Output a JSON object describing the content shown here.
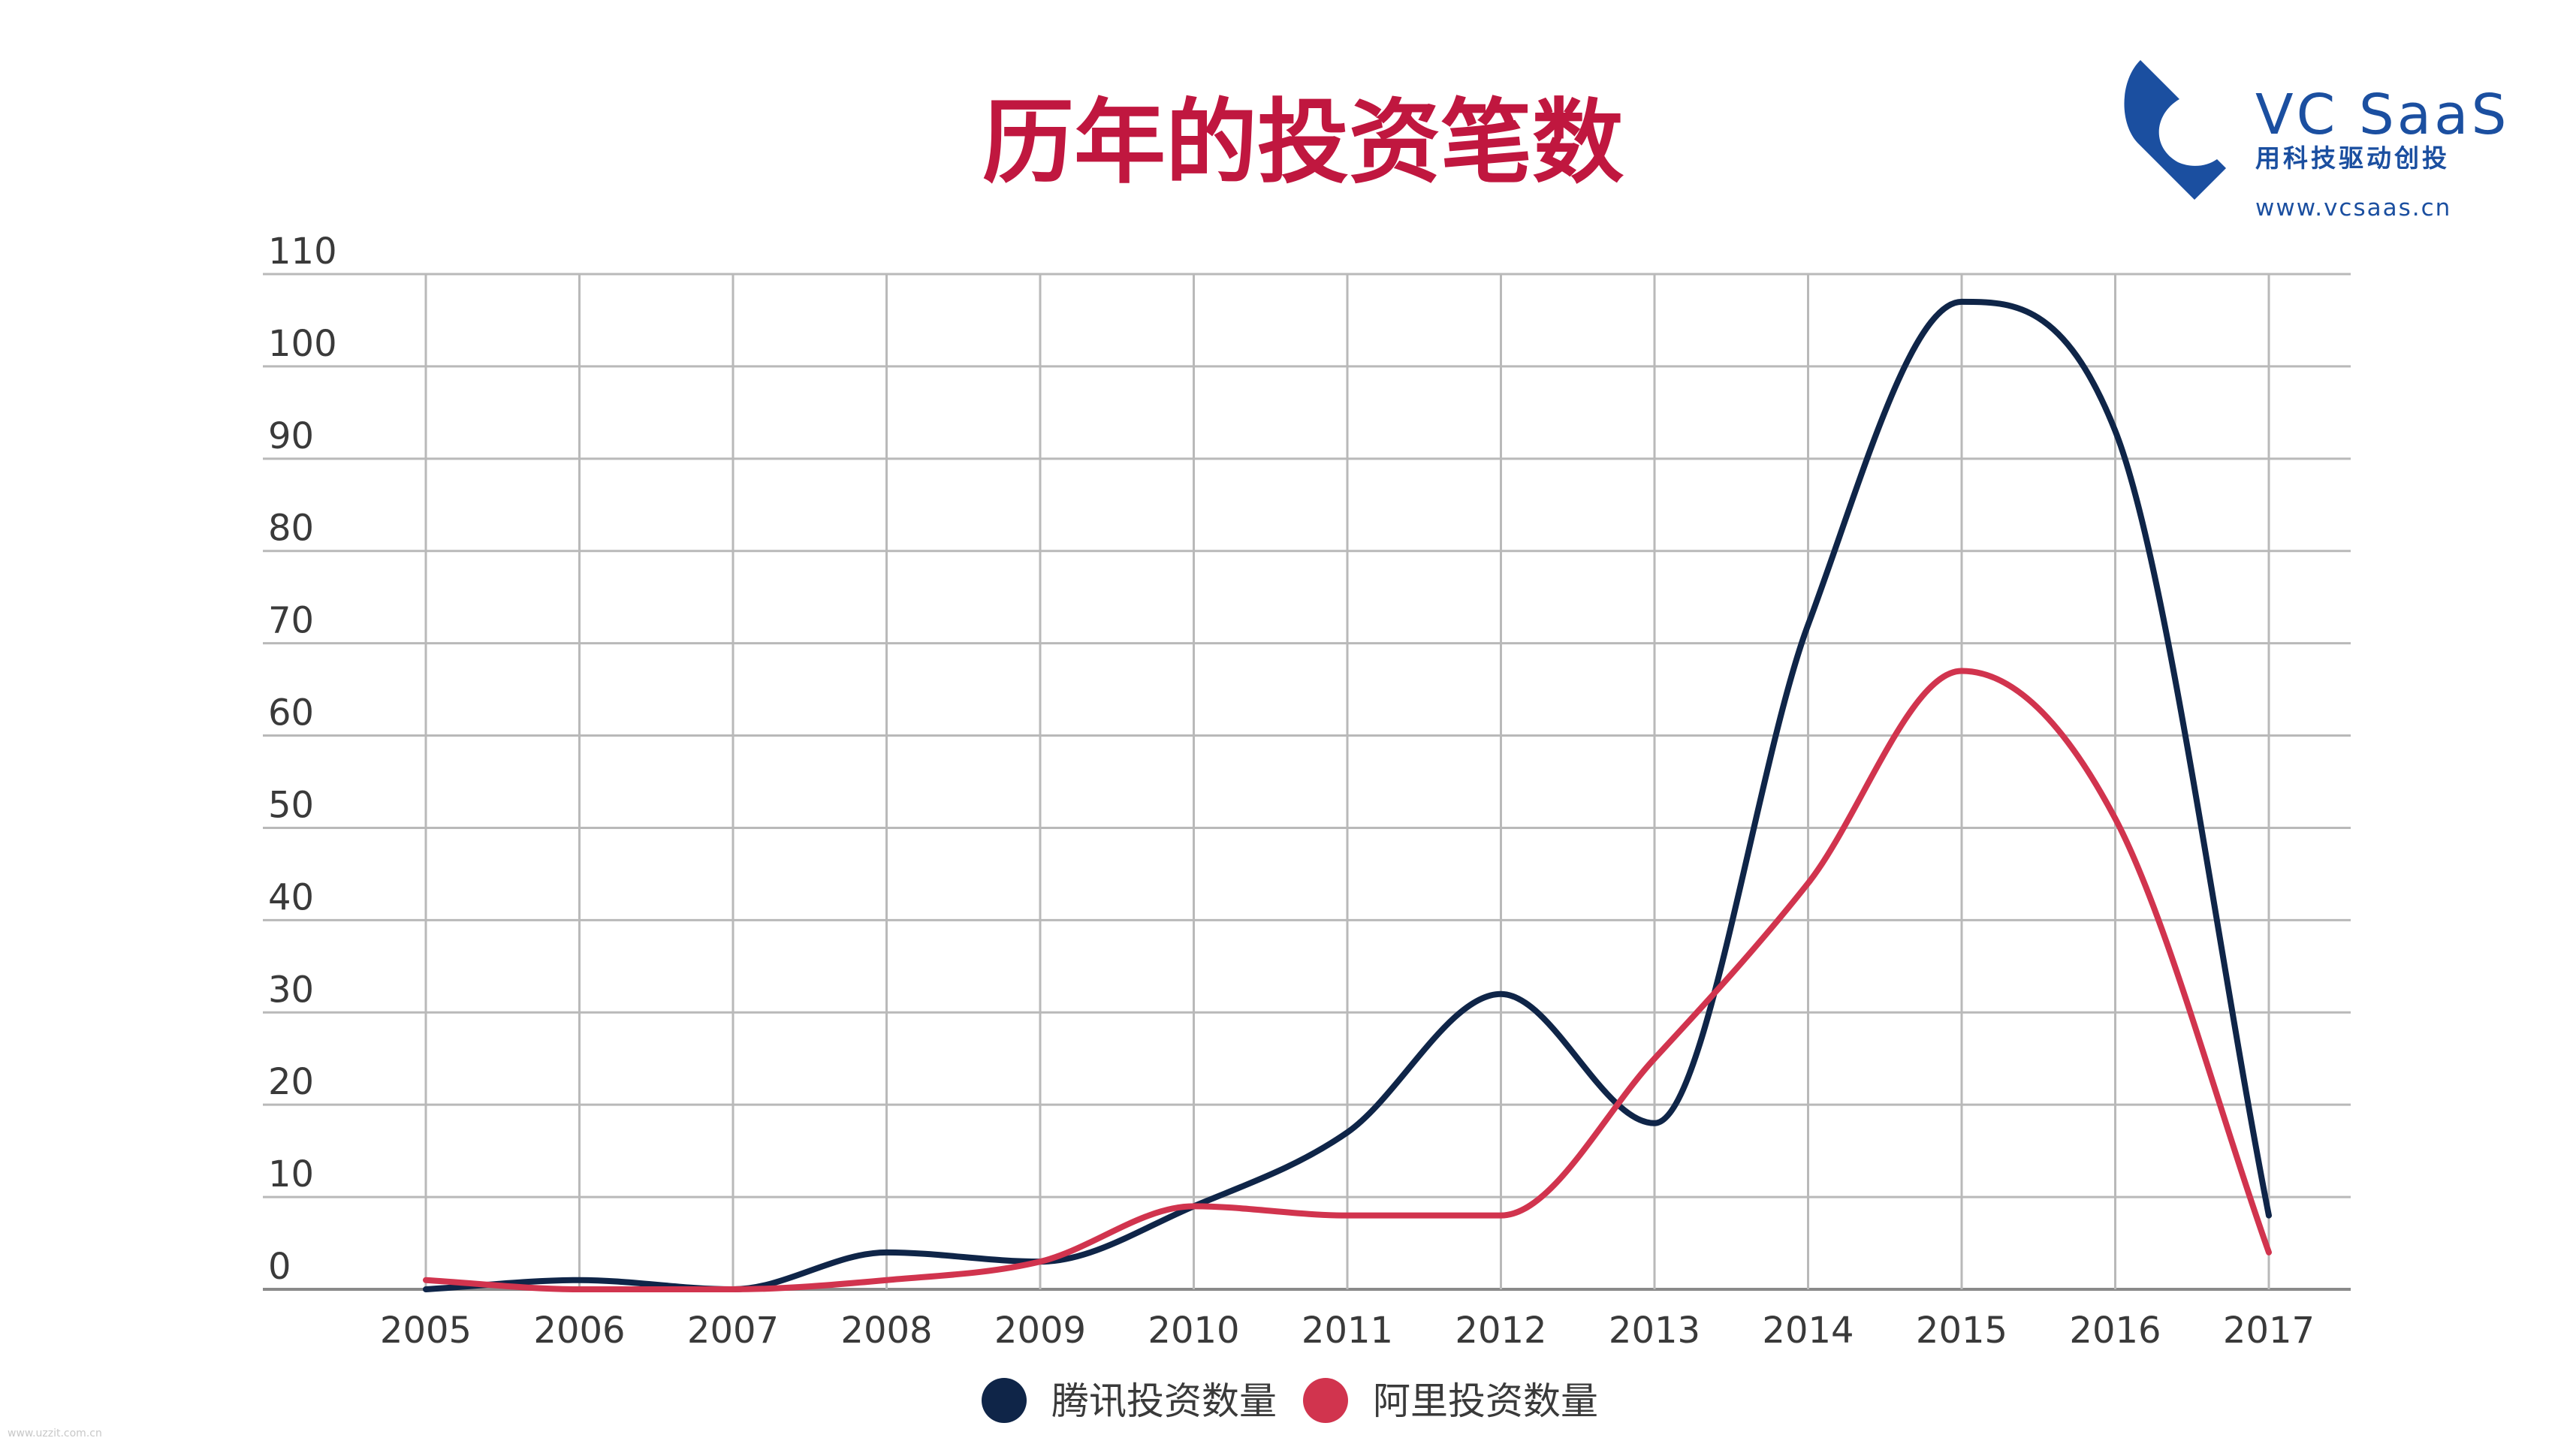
{
  "page": {
    "title": "历年的投资笔数",
    "title_color": "#c0173f"
  },
  "logo": {
    "name": "VC  SaaS",
    "slogan": "用科技驱动创投",
    "url": "www.vcsaas.cn",
    "color": "#1b4fa0"
  },
  "watermark": "www.uzzit.com.cn",
  "chart_data": {
    "type": "line",
    "title": "历年的投资笔数",
    "xlabel": "",
    "ylabel": "",
    "categories": [
      "2005",
      "2006",
      "2007",
      "2008",
      "2009",
      "2010",
      "2011",
      "2012",
      "2013",
      "2014",
      "2015",
      "2016",
      "2017"
    ],
    "ylim": [
      0,
      110
    ],
    "yticks": [
      0,
      10,
      20,
      30,
      40,
      50,
      60,
      70,
      80,
      90,
      100,
      110
    ],
    "grid": true,
    "smooth": true,
    "legend_position": "bottom-center",
    "series": [
      {
        "name": "腾讯投资数量",
        "color": "#0f2548",
        "values": [
          0,
          1,
          0,
          4,
          3,
          9,
          17,
          32,
          18,
          72,
          107,
          93,
          8
        ]
      },
      {
        "name": "阿里投资数量",
        "color": "#d1344e",
        "values": [
          1,
          0,
          0,
          1,
          3,
          9,
          8,
          8,
          25,
          44,
          67,
          51,
          4
        ]
      }
    ]
  }
}
